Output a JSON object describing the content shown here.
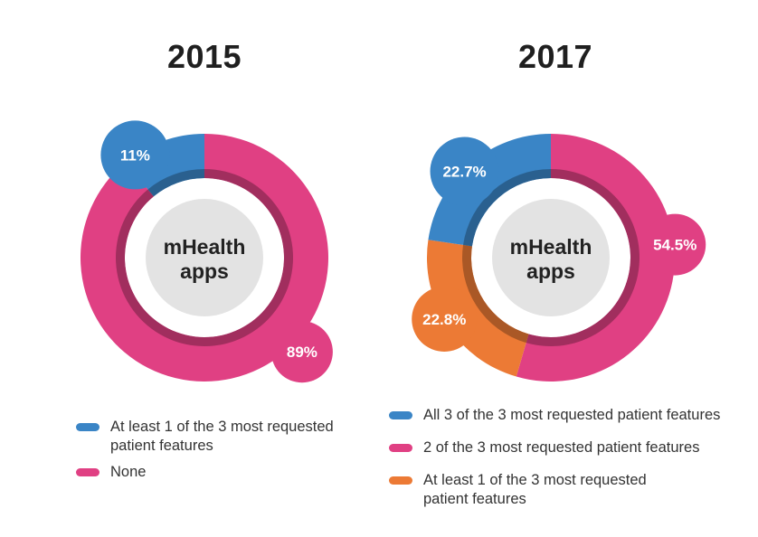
{
  "chart_data": [
    {
      "type": "pie",
      "title": "2015",
      "center_label": [
        "mHealth",
        "apps"
      ],
      "categories": [
        "At least 1 of the 3 most requested patient features",
        "None"
      ],
      "values": [
        11,
        89
      ],
      "value_labels": [
        "11%",
        "89%"
      ],
      "colors": [
        "#3a85c6",
        "#e04083"
      ],
      "legend": [
        "At least 1 of the 3 most requested",
        "patient features",
        "None"
      ]
    },
    {
      "type": "pie",
      "title": "2017",
      "center_label": [
        "mHealth",
        "apps"
      ],
      "categories": [
        "All 3 of the 3 most requested patient features",
        "2 of the 3 most requested patient features",
        "At least 1 of the 3 most requested patient features"
      ],
      "values": [
        22.7,
        54.5,
        22.8
      ],
      "value_labels": [
        "22.7%",
        "54.5%",
        "22.8%"
      ],
      "colors": [
        "#3a85c6",
        "#e04083",
        "#ec7a35"
      ],
      "legend": [
        "All 3 of the 3 most requested patient features",
        "2 of the 3 most requested patient features",
        "At least 1 of the 3 most requested",
        "patient features"
      ]
    }
  ]
}
